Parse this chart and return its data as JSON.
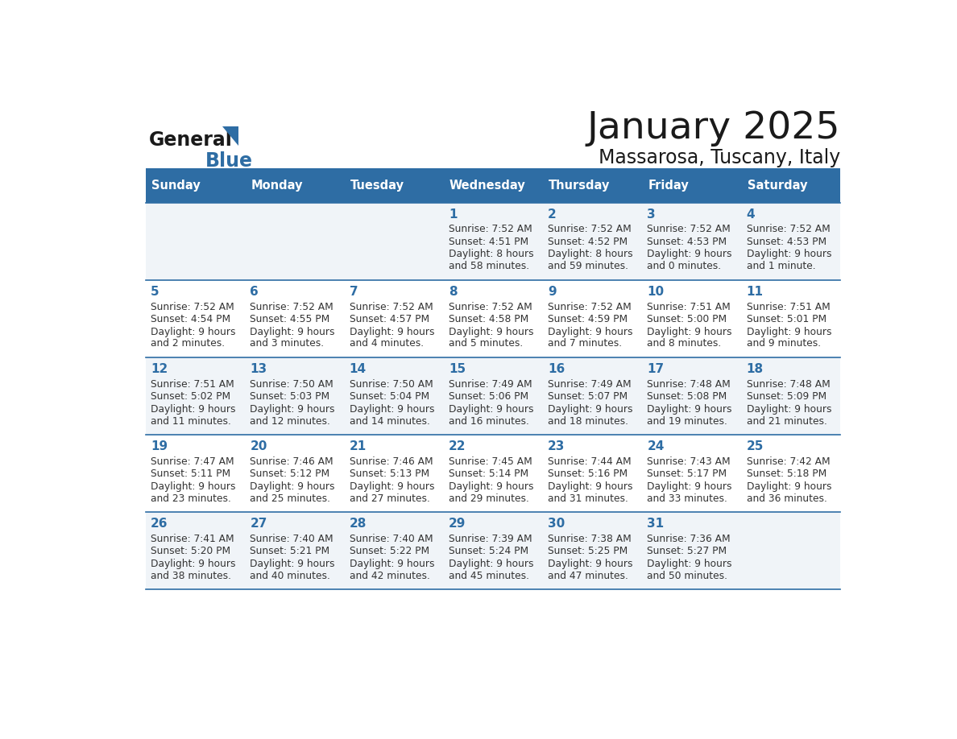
{
  "title": "January 2025",
  "subtitle": "Massarosa, Tuscany, Italy",
  "header_bg": "#2E6DA4",
  "header_text": "#FFFFFF",
  "weekdays": [
    "Sunday",
    "Monday",
    "Tuesday",
    "Wednesday",
    "Thursday",
    "Friday",
    "Saturday"
  ],
  "row_bg_odd": "#F0F4F8",
  "row_bg_even": "#FFFFFF",
  "day_number_color": "#2E6DA4",
  "text_color": "#333333",
  "grid_line_color": "#2E6DA4",
  "days": [
    {
      "day": null,
      "row": 0,
      "col": 0
    },
    {
      "day": null,
      "row": 0,
      "col": 1
    },
    {
      "day": null,
      "row": 0,
      "col": 2
    },
    {
      "day": 1,
      "row": 0,
      "col": 3,
      "sunrise": "7:52 AM",
      "sunset": "4:51 PM",
      "daylight_line1": "Daylight: 8 hours",
      "daylight_line2": "and 58 minutes."
    },
    {
      "day": 2,
      "row": 0,
      "col": 4,
      "sunrise": "7:52 AM",
      "sunset": "4:52 PM",
      "daylight_line1": "Daylight: 8 hours",
      "daylight_line2": "and 59 minutes."
    },
    {
      "day": 3,
      "row": 0,
      "col": 5,
      "sunrise": "7:52 AM",
      "sunset": "4:53 PM",
      "daylight_line1": "Daylight: 9 hours",
      "daylight_line2": "and 0 minutes."
    },
    {
      "day": 4,
      "row": 0,
      "col": 6,
      "sunrise": "7:52 AM",
      "sunset": "4:53 PM",
      "daylight_line1": "Daylight: 9 hours",
      "daylight_line2": "and 1 minute."
    },
    {
      "day": 5,
      "row": 1,
      "col": 0,
      "sunrise": "7:52 AM",
      "sunset": "4:54 PM",
      "daylight_line1": "Daylight: 9 hours",
      "daylight_line2": "and 2 minutes."
    },
    {
      "day": 6,
      "row": 1,
      "col": 1,
      "sunrise": "7:52 AM",
      "sunset": "4:55 PM",
      "daylight_line1": "Daylight: 9 hours",
      "daylight_line2": "and 3 minutes."
    },
    {
      "day": 7,
      "row": 1,
      "col": 2,
      "sunrise": "7:52 AM",
      "sunset": "4:57 PM",
      "daylight_line1": "Daylight: 9 hours",
      "daylight_line2": "and 4 minutes."
    },
    {
      "day": 8,
      "row": 1,
      "col": 3,
      "sunrise": "7:52 AM",
      "sunset": "4:58 PM",
      "daylight_line1": "Daylight: 9 hours",
      "daylight_line2": "and 5 minutes."
    },
    {
      "day": 9,
      "row": 1,
      "col": 4,
      "sunrise": "7:52 AM",
      "sunset": "4:59 PM",
      "daylight_line1": "Daylight: 9 hours",
      "daylight_line2": "and 7 minutes."
    },
    {
      "day": 10,
      "row": 1,
      "col": 5,
      "sunrise": "7:51 AM",
      "sunset": "5:00 PM",
      "daylight_line1": "Daylight: 9 hours",
      "daylight_line2": "and 8 minutes."
    },
    {
      "day": 11,
      "row": 1,
      "col": 6,
      "sunrise": "7:51 AM",
      "sunset": "5:01 PM",
      "daylight_line1": "Daylight: 9 hours",
      "daylight_line2": "and 9 minutes."
    },
    {
      "day": 12,
      "row": 2,
      "col": 0,
      "sunrise": "7:51 AM",
      "sunset": "5:02 PM",
      "daylight_line1": "Daylight: 9 hours",
      "daylight_line2": "and 11 minutes."
    },
    {
      "day": 13,
      "row": 2,
      "col": 1,
      "sunrise": "7:50 AM",
      "sunset": "5:03 PM",
      "daylight_line1": "Daylight: 9 hours",
      "daylight_line2": "and 12 minutes."
    },
    {
      "day": 14,
      "row": 2,
      "col": 2,
      "sunrise": "7:50 AM",
      "sunset": "5:04 PM",
      "daylight_line1": "Daylight: 9 hours",
      "daylight_line2": "and 14 minutes."
    },
    {
      "day": 15,
      "row": 2,
      "col": 3,
      "sunrise": "7:49 AM",
      "sunset": "5:06 PM",
      "daylight_line1": "Daylight: 9 hours",
      "daylight_line2": "and 16 minutes."
    },
    {
      "day": 16,
      "row": 2,
      "col": 4,
      "sunrise": "7:49 AM",
      "sunset": "5:07 PM",
      "daylight_line1": "Daylight: 9 hours",
      "daylight_line2": "and 18 minutes."
    },
    {
      "day": 17,
      "row": 2,
      "col": 5,
      "sunrise": "7:48 AM",
      "sunset": "5:08 PM",
      "daylight_line1": "Daylight: 9 hours",
      "daylight_line2": "and 19 minutes."
    },
    {
      "day": 18,
      "row": 2,
      "col": 6,
      "sunrise": "7:48 AM",
      "sunset": "5:09 PM",
      "daylight_line1": "Daylight: 9 hours",
      "daylight_line2": "and 21 minutes."
    },
    {
      "day": 19,
      "row": 3,
      "col": 0,
      "sunrise": "7:47 AM",
      "sunset": "5:11 PM",
      "daylight_line1": "Daylight: 9 hours",
      "daylight_line2": "and 23 minutes."
    },
    {
      "day": 20,
      "row": 3,
      "col": 1,
      "sunrise": "7:46 AM",
      "sunset": "5:12 PM",
      "daylight_line1": "Daylight: 9 hours",
      "daylight_line2": "and 25 minutes."
    },
    {
      "day": 21,
      "row": 3,
      "col": 2,
      "sunrise": "7:46 AM",
      "sunset": "5:13 PM",
      "daylight_line1": "Daylight: 9 hours",
      "daylight_line2": "and 27 minutes."
    },
    {
      "day": 22,
      "row": 3,
      "col": 3,
      "sunrise": "7:45 AM",
      "sunset": "5:14 PM",
      "daylight_line1": "Daylight: 9 hours",
      "daylight_line2": "and 29 minutes."
    },
    {
      "day": 23,
      "row": 3,
      "col": 4,
      "sunrise": "7:44 AM",
      "sunset": "5:16 PM",
      "daylight_line1": "Daylight: 9 hours",
      "daylight_line2": "and 31 minutes."
    },
    {
      "day": 24,
      "row": 3,
      "col": 5,
      "sunrise": "7:43 AM",
      "sunset": "5:17 PM",
      "daylight_line1": "Daylight: 9 hours",
      "daylight_line2": "and 33 minutes."
    },
    {
      "day": 25,
      "row": 3,
      "col": 6,
      "sunrise": "7:42 AM",
      "sunset": "5:18 PM",
      "daylight_line1": "Daylight: 9 hours",
      "daylight_line2": "and 36 minutes."
    },
    {
      "day": 26,
      "row": 4,
      "col": 0,
      "sunrise": "7:41 AM",
      "sunset": "5:20 PM",
      "daylight_line1": "Daylight: 9 hours",
      "daylight_line2": "and 38 minutes."
    },
    {
      "day": 27,
      "row": 4,
      "col": 1,
      "sunrise": "7:40 AM",
      "sunset": "5:21 PM",
      "daylight_line1": "Daylight: 9 hours",
      "daylight_line2": "and 40 minutes."
    },
    {
      "day": 28,
      "row": 4,
      "col": 2,
      "sunrise": "7:40 AM",
      "sunset": "5:22 PM",
      "daylight_line1": "Daylight: 9 hours",
      "daylight_line2": "and 42 minutes."
    },
    {
      "day": 29,
      "row": 4,
      "col": 3,
      "sunrise": "7:39 AM",
      "sunset": "5:24 PM",
      "daylight_line1": "Daylight: 9 hours",
      "daylight_line2": "and 45 minutes."
    },
    {
      "day": 30,
      "row": 4,
      "col": 4,
      "sunrise": "7:38 AM",
      "sunset": "5:25 PM",
      "daylight_line1": "Daylight: 9 hours",
      "daylight_line2": "and 47 minutes."
    },
    {
      "day": 31,
      "row": 4,
      "col": 5,
      "sunrise": "7:36 AM",
      "sunset": "5:27 PM",
      "daylight_line1": "Daylight: 9 hours",
      "daylight_line2": "and 50 minutes."
    },
    {
      "day": null,
      "row": 4,
      "col": 6
    }
  ]
}
